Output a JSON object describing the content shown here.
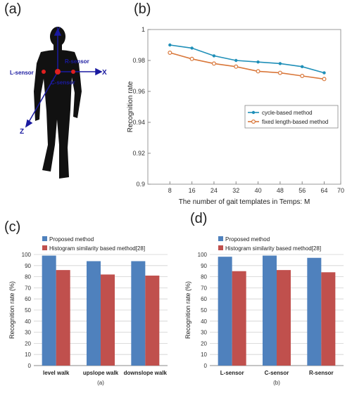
{
  "panel_labels": {
    "a": "(a)",
    "b": "(b)",
    "c": "(c)",
    "d": "(d)"
  },
  "figure_a": {
    "axes": {
      "y": "Y",
      "x": "X",
      "z": "Z"
    },
    "sensors": {
      "left": "L-sensor",
      "right": "R-sensor",
      "center": "C-sensor"
    }
  },
  "chart_data": [
    {
      "id": "b",
      "type": "line",
      "title": "",
      "xlabel": "The number of gait templates in Temps: M",
      "ylabel": "Recognition rate",
      "x": [
        8,
        16,
        24,
        32,
        40,
        48,
        56,
        64
      ],
      "xlim": [
        0,
        70
      ],
      "xticks": [
        0,
        8,
        16,
        24,
        32,
        40,
        48,
        56,
        64,
        70
      ],
      "ylim": [
        0.9,
        1.0
      ],
      "yticks": [
        0.9,
        0.92,
        0.94,
        0.96,
        0.98,
        1
      ],
      "ytick_labels": [
        "0.9",
        "0.92",
        "0.94",
        "0.96",
        "0.98",
        "1"
      ],
      "legend_position": "center-right",
      "series": [
        {
          "name": "cycle-based method",
          "color": "#1f8fb8",
          "values": [
            0.99,
            0.988,
            0.983,
            0.98,
            0.979,
            0.978,
            0.976,
            0.972
          ]
        },
        {
          "name": "fixed length-based method",
          "color": "#d9773a",
          "values": [
            0.985,
            0.981,
            0.978,
            0.976,
            0.973,
            0.972,
            0.97,
            0.968
          ]
        }
      ]
    },
    {
      "id": "c",
      "type": "bar",
      "caption": "(a)",
      "ylabel": "Recognition rate (%)",
      "ylim": [
        0,
        100
      ],
      "yticks": [
        0,
        10,
        20,
        30,
        40,
        50,
        60,
        70,
        80,
        90,
        100
      ],
      "categories": [
        "level walk",
        "upslope walk",
        "downslope walk"
      ],
      "legend_position": "top-left",
      "grid": true,
      "series": [
        {
          "name": "Proposed method",
          "color": "#4f81bd",
          "values": [
            99,
            94,
            94
          ]
        },
        {
          "name": "Histogram similarity based method[28]",
          "color": "#c0504d",
          "values": [
            86,
            82,
            81
          ]
        }
      ]
    },
    {
      "id": "d",
      "type": "bar",
      "caption": "(b)",
      "ylabel": "Recognition rate (%)",
      "ylim": [
        0,
        100
      ],
      "yticks": [
        0,
        10,
        20,
        30,
        40,
        50,
        60,
        70,
        80,
        90,
        100
      ],
      "categories": [
        "L-sensor",
        "C-sensor",
        "R-sensor"
      ],
      "legend_position": "top-left",
      "grid": true,
      "series": [
        {
          "name": "Proposed method",
          "color": "#4f81bd",
          "values": [
            98,
            99,
            97
          ]
        },
        {
          "name": "Histogram similarity based method[28]",
          "color": "#c0504d",
          "values": [
            85,
            86,
            84
          ]
        }
      ]
    }
  ]
}
